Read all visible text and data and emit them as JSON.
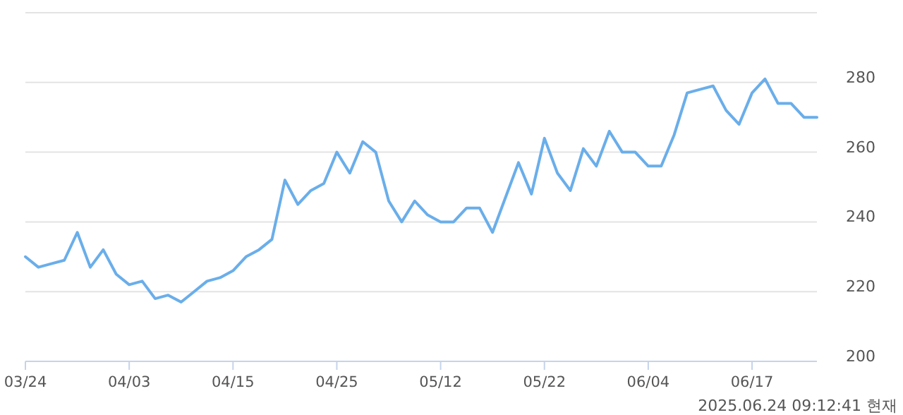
{
  "chart_data": {
    "type": "line",
    "categories": [
      "03/24",
      null,
      null,
      null,
      null,
      null,
      null,
      null,
      "04/03",
      null,
      null,
      null,
      null,
      null,
      null,
      null,
      "04/15",
      null,
      null,
      null,
      null,
      null,
      null,
      null,
      "04/25",
      null,
      null,
      null,
      null,
      null,
      null,
      null,
      "05/12",
      null,
      null,
      null,
      null,
      null,
      null,
      null,
      "05/22",
      null,
      null,
      null,
      null,
      null,
      null,
      null,
      "06/04",
      null,
      null,
      null,
      null,
      null,
      null,
      null,
      "06/17",
      null,
      null,
      null,
      null,
      null
    ],
    "series": [
      {
        "color": "#6aaeea",
        "values": [
          230,
          227,
          228,
          229,
          237,
          227,
          232,
          225,
          222,
          223,
          218,
          219,
          217,
          220,
          223,
          224,
          226,
          230,
          232,
          235,
          252,
          245,
          249,
          251,
          260,
          254,
          263,
          260,
          246,
          240,
          246,
          242,
          240,
          240,
          244,
          244,
          237,
          247,
          257,
          248,
          264,
          254,
          249,
          261,
          256,
          266,
          260,
          260,
          256,
          256,
          265,
          277,
          278,
          279,
          272,
          268,
          277,
          281,
          274,
          274,
          270,
          270
        ]
      }
    ],
    "ylim": [
      200,
      300
    ],
    "yticks": [
      200,
      220,
      240,
      260,
      280,
      {
        "value": 300,
        "label": null
      }
    ],
    "grid": "y",
    "marker": "none",
    "line_style": "solid",
    "annotations": [
      "2025.06.24 09:12:41 현재"
    ]
  }
}
